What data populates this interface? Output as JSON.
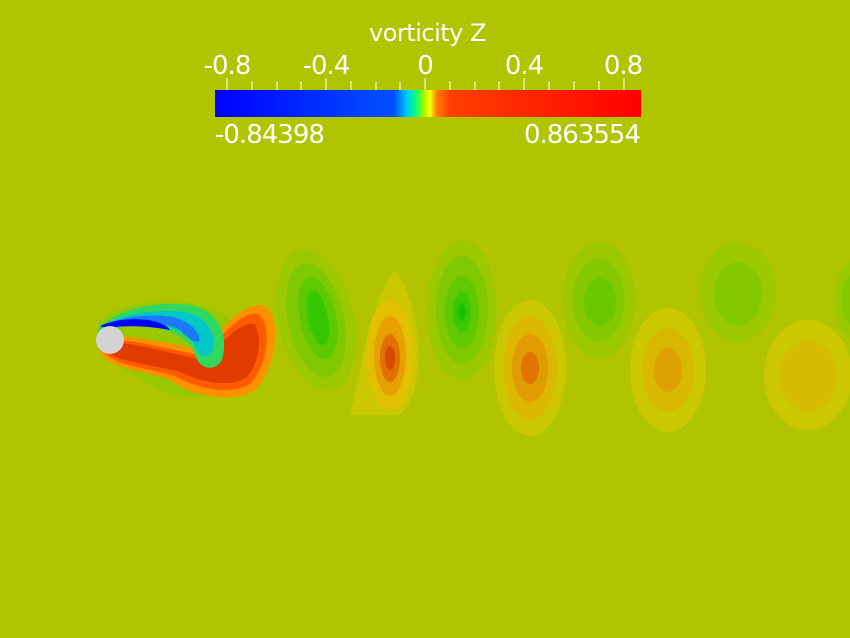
{
  "legend": {
    "title": "vorticity Z",
    "ticks": [
      "-0.8",
      "-0.4",
      "0",
      "0.4",
      "0.8"
    ],
    "range_min": "-0.84398",
    "range_max": "0.863554"
  },
  "colors": {
    "background": "#b0c400",
    "cylinder": "#d3d3d3",
    "negative": "#0000ff",
    "positive": "#ff0000"
  }
}
